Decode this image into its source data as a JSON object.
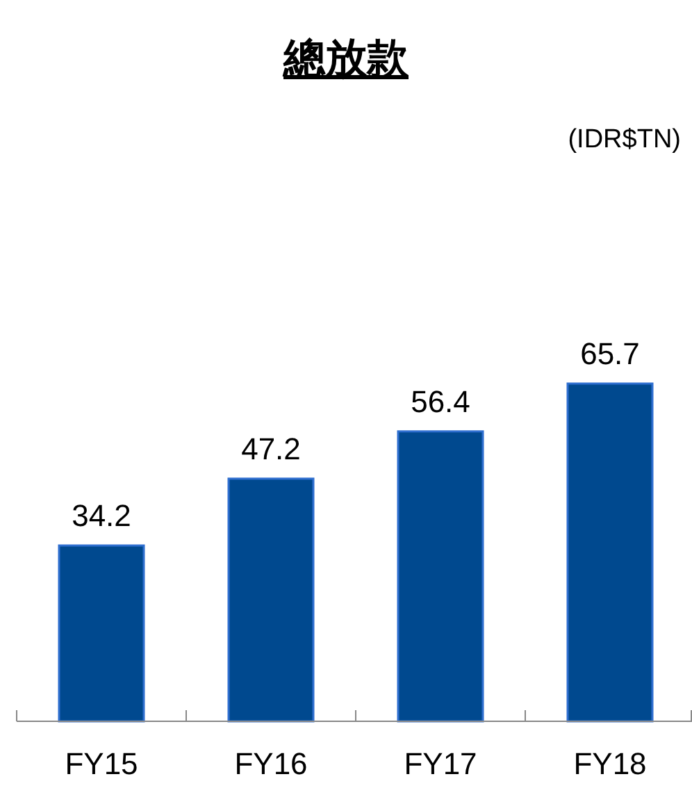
{
  "chart_data": {
    "type": "bar",
    "title": "總放款",
    "annotations": [
      "(IDR$TN)"
    ],
    "categories": [
      "FY15",
      "FY16",
      "FY17",
      "FY18"
    ],
    "values": [
      34.2,
      47.2,
      56.4,
      65.7
    ],
    "color": "#00498f",
    "data_labels": true
  }
}
